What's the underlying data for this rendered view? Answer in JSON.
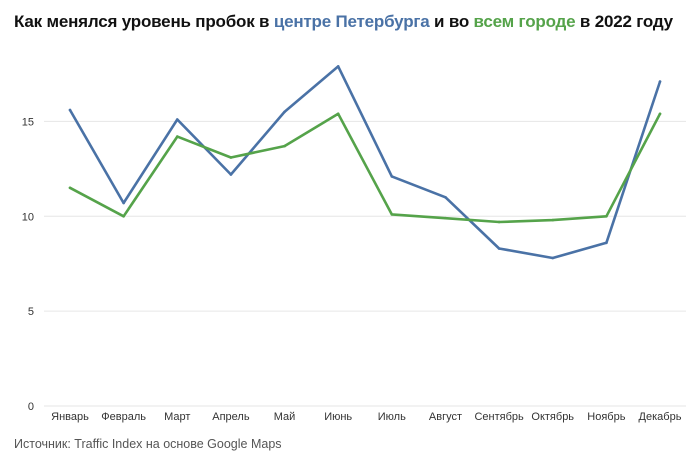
{
  "title": {
    "prefix": "Как менялся уровень пробок в ",
    "center_label": "центре Петербурга",
    "middle": " и во ",
    "city_label": "всем городе",
    "suffix": " в 2022 году"
  },
  "source": "Источник: Traffic Index на основе Google Maps",
  "colors": {
    "center": "#4a72a6",
    "city": "#55a34a",
    "grid": "#e6e6e6",
    "text": "#333333"
  },
  "chart_data": {
    "type": "line",
    "categories": [
      "Январь",
      "Февраль",
      "Март",
      "Апрель",
      "Май",
      "Июнь",
      "Июль",
      "Август",
      "Сентябрь",
      "Октябрь",
      "Ноябрь",
      "Декабрь"
    ],
    "series": [
      {
        "key": "center",
        "values": [
          15.6,
          10.7,
          15.1,
          12.2,
          15.5,
          17.9,
          12.1,
          11.0,
          8.3,
          7.8,
          8.6,
          17.1
        ]
      },
      {
        "key": "city",
        "values": [
          11.5,
          10.0,
          14.2,
          13.1,
          13.7,
          15.4,
          10.1,
          9.9,
          9.7,
          9.8,
          10.0,
          15.4
        ]
      }
    ],
    "yticks": [
      0,
      5,
      10,
      15
    ],
    "ylim": [
      0,
      18.5
    ],
    "grid": true,
    "xlabel": "",
    "ylabel": ""
  }
}
